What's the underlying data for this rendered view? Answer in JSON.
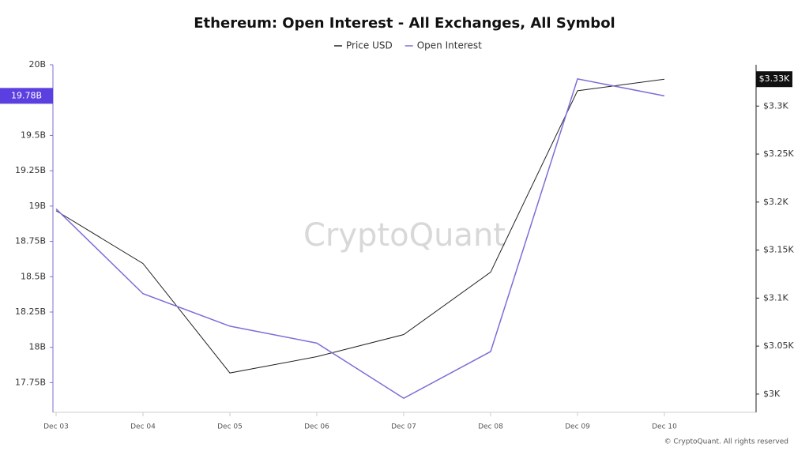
{
  "chart_data": {
    "type": "line",
    "title": "Ethereum: Open Interest - All Exchanges, All Symbol",
    "watermark": "CryptoQuant",
    "footer": "© CryptoQuant. All rights reserved",
    "categories": [
      "Dec 03",
      "Dec 04",
      "Dec 05",
      "Dec 06",
      "Dec 07",
      "Dec 08",
      "Dec 09",
      "Dec 10"
    ],
    "series": [
      {
        "name": "Price USD",
        "color": "#222222",
        "axis": "y2",
        "current_label": "$3.33K",
        "values": [
          3191,
          3136,
          3022,
          3039,
          3062,
          3127,
          3316,
          3328
        ]
      },
      {
        "name": "Open Interest",
        "color": "#7b6fd6",
        "axis": "y",
        "current_label": "19.78B",
        "values": [
          18.98,
          18.38,
          18.15,
          18.03,
          17.64,
          17.97,
          19.9,
          19.78
        ]
      }
    ],
    "ylim": [
      17.54,
      20
    ],
    "yticks": [
      {
        "value": 17.75,
        "label": "17.75B"
      },
      {
        "value": 18,
        "label": "18B"
      },
      {
        "value": 18.25,
        "label": "18.25B"
      },
      {
        "value": 18.5,
        "label": "18.5B"
      },
      {
        "value": 18.75,
        "label": "18.75B"
      },
      {
        "value": 19,
        "label": "19B"
      },
      {
        "value": 19.25,
        "label": "19.25B"
      },
      {
        "value": 19.5,
        "label": "19.5B"
      },
      {
        "value": 20,
        "label": "20B"
      }
    ],
    "y2lim": [
      2981,
      3343
    ],
    "y2ticks": [
      {
        "value": 3000,
        "label": "$3K"
      },
      {
        "value": 3050,
        "label": "$3.05K"
      },
      {
        "value": 3100,
        "label": "$3.1K"
      },
      {
        "value": 3150,
        "label": "$3.15K"
      },
      {
        "value": 3200,
        "label": "$3.2K"
      },
      {
        "value": 3250,
        "label": "$3.25K"
      },
      {
        "value": 3300,
        "label": "$3.3K"
      }
    ]
  }
}
